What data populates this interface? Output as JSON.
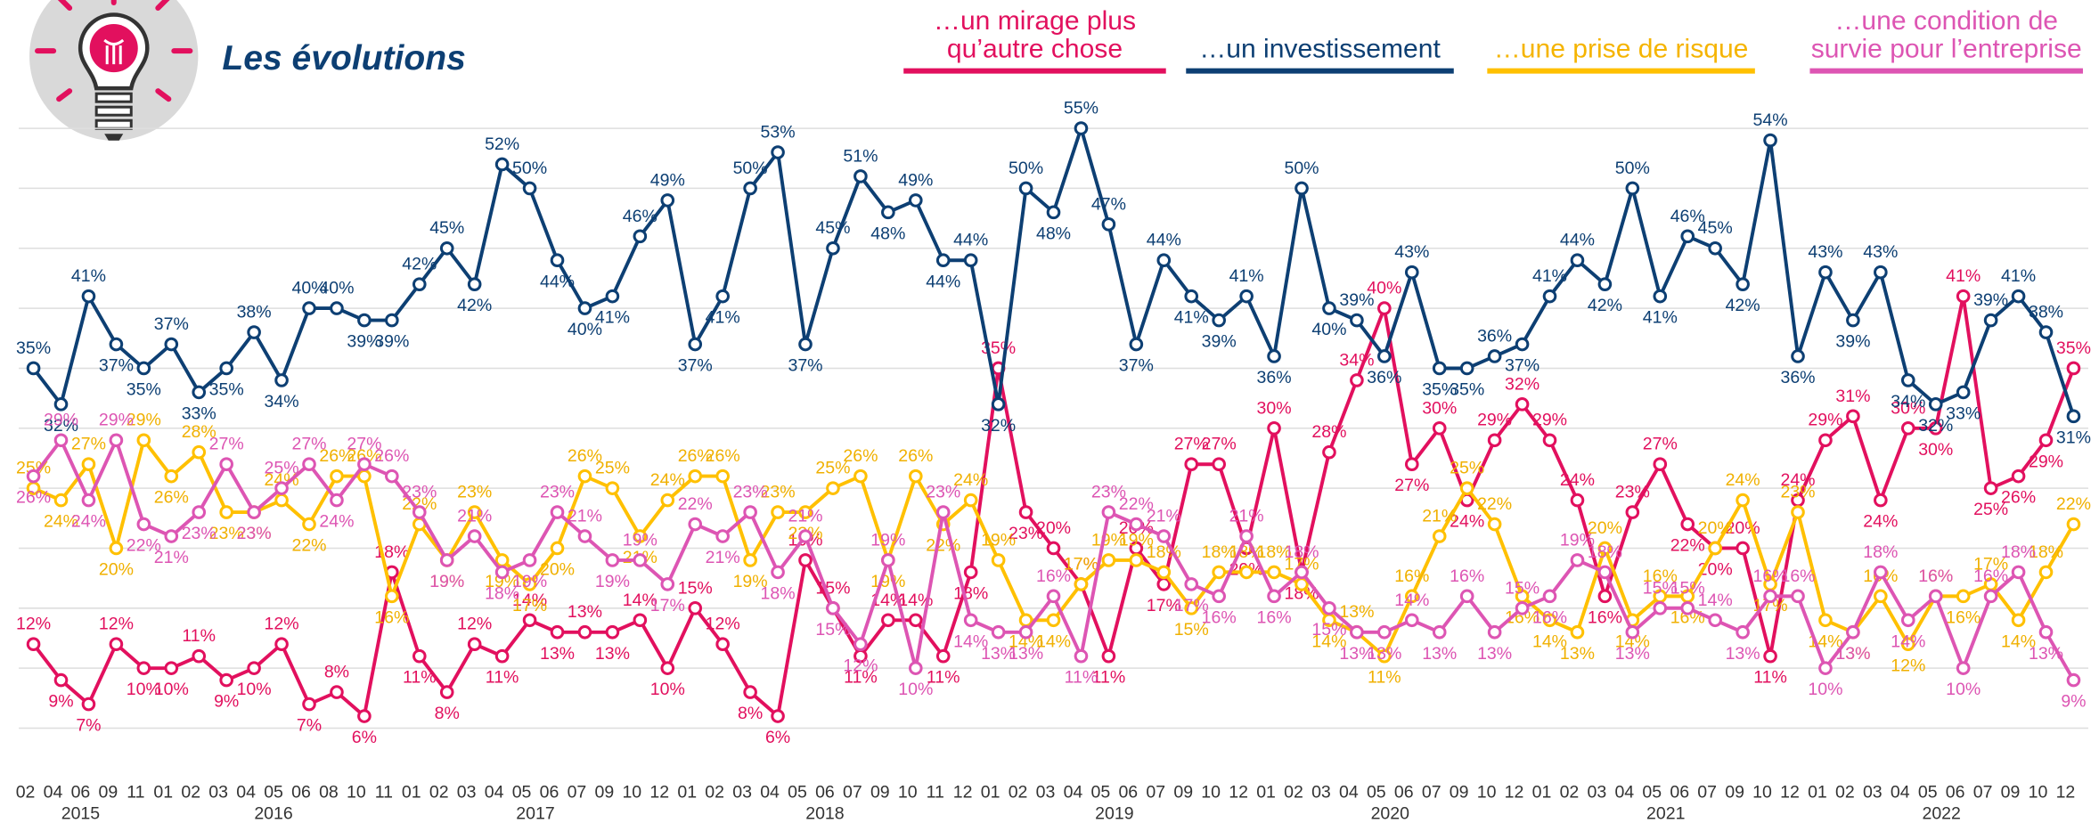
{
  "chart_data": {
    "type": "line",
    "title": "Les évolutions",
    "categories": [
      "02",
      "04",
      "06",
      "09",
      "11",
      "01",
      "02",
      "03",
      "04",
      "05",
      "06",
      "08",
      "10",
      "11",
      "01",
      "02",
      "03",
      "04",
      "05",
      "06",
      "07",
      "09",
      "10",
      "12",
      "01",
      "02",
      "03",
      "04",
      "05",
      "06",
      "07",
      "09",
      "10",
      "11",
      "12",
      "01",
      "02",
      "03",
      "04",
      "05",
      "06",
      "07",
      "09",
      "10",
      "12",
      "01",
      "02",
      "03",
      "04",
      "05",
      "06",
      "07",
      "09",
      "10",
      "12",
      "01",
      "02",
      "03",
      "04",
      "05",
      "06",
      "07",
      "09",
      "10",
      "12",
      "01",
      "02",
      "03",
      "04",
      "05",
      "06",
      "07",
      "09",
      "10",
      "12"
    ],
    "years": [
      "2015",
      "2016",
      "2017",
      "2018",
      "2019",
      "2020",
      "2021",
      "2022"
    ],
    "ylim": [
      3,
      58
    ],
    "yticks": [
      5,
      10,
      15,
      20,
      25,
      30,
      35,
      40,
      45,
      50,
      55
    ],
    "grid": true,
    "series": [
      {
        "name": "…un mirage plus qu’autre chose",
        "color": "#e2105e",
        "values": [
          12,
          9,
          7,
          12,
          10,
          10,
          11,
          9,
          10,
          12,
          7,
          8,
          6,
          18,
          11,
          8,
          12,
          11,
          14,
          13,
          13,
          13,
          14,
          10,
          15,
          12,
          8,
          6,
          19,
          15,
          11,
          14,
          14,
          11,
          18,
          35,
          23,
          20,
          17,
          11,
          20,
          17,
          27,
          27,
          20,
          30,
          18,
          28,
          34,
          40,
          27,
          30,
          24,
          29,
          32,
          29,
          24,
          16,
          23,
          27,
          22,
          20,
          20,
          11,
          24,
          29,
          31,
          24,
          30,
          30,
          41,
          25,
          26,
          29,
          35
        ],
        "value_labels": [
          "12%",
          "9%",
          "7%",
          "12%",
          "10%",
          "10%",
          "11%",
          "9%",
          "10%",
          "12%",
          "7%",
          "8%",
          "6%",
          "18%",
          "11%",
          "8%",
          "12%",
          "11%",
          "14%",
          "13%",
          "13%",
          "13%",
          "14%",
          "10%",
          "15%",
          "12%",
          "8%",
          "6%",
          "19%",
          "15%",
          "11%",
          "14%",
          "14%",
          "11%",
          "18%",
          "35%",
          "23%",
          "20%",
          "17%",
          "11%",
          "20%",
          "17%",
          "27%",
          "27%",
          "20%",
          "30%",
          "18%",
          "28%",
          "34%",
          "40%",
          "27%",
          "30%",
          "24%",
          "29%",
          "32%",
          "29%",
          "24%",
          "16%",
          "23%",
          "27%",
          "22%",
          "20%",
          "20%",
          "11%",
          "24%",
          "29%",
          "31%",
          "24%",
          "30%",
          "30%",
          "41%",
          "25%",
          "26%",
          "29%",
          "35%"
        ]
      },
      {
        "name": "…un investissement",
        "color": "#0d3f73",
        "values": [
          35,
          32,
          41,
          37,
          35,
          37,
          33,
          35,
          38,
          34,
          40,
          40,
          39,
          39,
          42,
          45,
          42,
          52,
          50,
          44,
          40,
          41,
          46,
          49,
          37,
          41,
          50,
          53,
          37,
          45,
          51,
          48,
          49,
          44,
          44,
          32,
          50,
          48,
          55,
          47,
          37,
          44,
          41,
          39,
          41,
          36,
          50,
          40,
          39,
          36,
          43,
          35,
          35,
          36,
          37,
          41,
          44,
          42,
          50,
          41,
          46,
          45,
          42,
          54,
          36,
          43,
          39,
          43,
          34,
          32,
          33,
          39,
          41,
          38,
          31
        ],
        "value_labels": [
          "35%",
          "32%",
          "41%",
          "37%",
          "35%",
          "37%",
          "33%",
          "35%",
          "38%",
          "34%",
          "40%",
          "40%",
          "39%",
          "39%",
          "42%",
          "45%",
          "42%",
          "52%",
          "50%",
          "44%",
          "40%",
          "41%",
          "46%",
          "49%",
          "37%",
          "41%",
          "50%",
          "53%",
          "37%",
          "45%",
          "51%",
          "48%",
          "49%",
          "44%",
          "44%",
          "32%",
          "50%",
          "48%",
          "55%",
          "47%",
          "37%",
          "44%",
          "41%",
          "39%",
          "41%",
          "36%",
          "50%",
          "40%",
          "39%",
          "36%",
          "43%",
          "35%",
          "35%",
          "36%",
          "37%",
          "41%",
          "44%",
          "42%",
          "50%",
          "41%",
          "46%",
          "45%",
          "42%",
          "54%",
          "36%",
          "43%",
          "39%",
          "43%",
          "34%",
          "32%",
          "33%",
          "39%",
          "41%",
          "38%",
          "31%"
        ]
      },
      {
        "name": "…une prise de risque",
        "color": "#ffc000",
        "values": [
          25,
          24,
          27,
          20,
          29,
          26,
          28,
          23,
          23,
          24,
          22,
          26,
          26,
          16,
          22,
          19,
          23,
          19,
          17,
          20,
          26,
          25,
          21,
          24,
          26,
          26,
          19,
          23,
          23,
          25,
          26,
          19,
          26,
          22,
          24,
          19,
          14,
          14,
          17,
          19,
          19,
          18,
          15,
          18,
          18,
          18,
          17,
          14,
          13,
          11,
          16,
          21,
          25,
          22,
          16,
          14,
          13,
          20,
          14,
          16,
          16,
          20,
          24,
          17,
          23,
          14,
          13,
          16,
          12,
          16,
          16,
          17,
          14,
          18,
          22
        ],
        "value_labels": [
          "25%",
          "24%",
          "27%",
          "20%",
          "29%",
          "26%",
          "28%",
          "23%",
          "23%",
          "24%",
          "22%",
          "26%",
          "26%",
          "16%",
          "22%",
          "19%",
          "23%",
          "19%",
          "17%",
          "20%",
          "26%",
          "25%",
          "21%",
          "24%",
          "26%",
          "26%",
          "19%",
          "23%",
          "23%",
          "25%",
          "26%",
          "19%",
          "26%",
          "22%",
          "24%",
          "19%",
          "14%",
          "14%",
          "17%",
          "19%",
          "19%",
          "18%",
          "15%",
          "18%",
          "18%",
          "18%",
          "17%",
          "14%",
          "13%",
          "11%",
          "16%",
          "21%",
          "25%",
          "22%",
          "16%",
          "14%",
          "13%",
          "20%",
          "14%",
          "16%",
          "16%",
          "20%",
          "24%",
          "17%",
          "23%",
          "14%",
          "13%",
          "16%",
          "12%",
          "16%",
          "16%",
          "17%",
          "14%",
          "18%",
          "22%"
        ]
      },
      {
        "name": "…une condition de survie pour l’entreprise",
        "color": "#dd55b3",
        "values": [
          26,
          29,
          24,
          29,
          22,
          21,
          23,
          27,
          23,
          25,
          27,
          24,
          27,
          26,
          23,
          19,
          21,
          18,
          19,
          23,
          21,
          19,
          19,
          17,
          22,
          21,
          23,
          18,
          21,
          15,
          12,
          19,
          10,
          23,
          14,
          13,
          13,
          16,
          11,
          23,
          22,
          21,
          17,
          16,
          21,
          16,
          18,
          15,
          13,
          13,
          14,
          13,
          16,
          13,
          15,
          16,
          19,
          18,
          13,
          15,
          15,
          14,
          13,
          16,
          16,
          10,
          13,
          18,
          14,
          16,
          10,
          16,
          18,
          13,
          9
        ],
        "value_labels": [
          "26%",
          "29%",
          "24%",
          "29%",
          "22%",
          "21%",
          "23%",
          "27%",
          "23%",
          "25%",
          "27%",
          "24%",
          "27%",
          "26%",
          "23%",
          "19%",
          "21%",
          "18%",
          "19%",
          "23%",
          "21%",
          "19%",
          "19%",
          "17%",
          "22%",
          "21%",
          "23%",
          "18%",
          "21%",
          "15%",
          "12%",
          "19%",
          "10%",
          "23%",
          "14%",
          "13%",
          "13%",
          "16%",
          "11%",
          "23%",
          "22%",
          "21%",
          "17%",
          "16%",
          "21%",
          "16%",
          "18%",
          "15%",
          "13%",
          "13%",
          "14%",
          "13%",
          "16%",
          "13%",
          "15%",
          "16%",
          "19%",
          "18%",
          "13%",
          "15%",
          "15%",
          "14%",
          "13%",
          "16%",
          "16%",
          "10%",
          "13%",
          "18%",
          "14%",
          "16%",
          "10%",
          "16%",
          "18%",
          "13%",
          "9%"
        ]
      }
    ]
  }
}
